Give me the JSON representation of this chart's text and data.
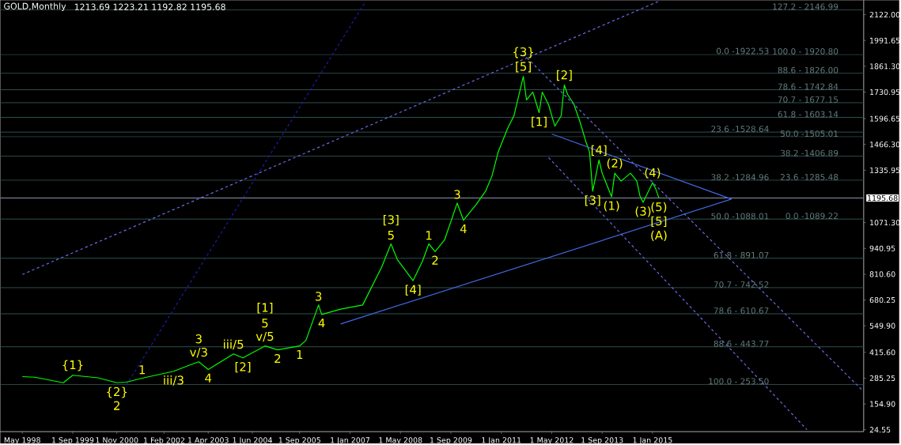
{
  "chart_data": {
    "type": "line",
    "title": "GOLD,Monthly",
    "subtitle": "1213.69 1223.21 1192.82 1195.68",
    "xlim": [
      "1997-10",
      "2020-08"
    ],
    "ylim": [
      15,
      2195
    ],
    "xticks": [
      {
        "value": "1998-05-01",
        "label": "May 1998"
      },
      {
        "value": "1999-09-01",
        "label": "1 Sep 1999"
      },
      {
        "value": "2000-11-01",
        "label": "1 Nov 2000"
      },
      {
        "value": "2002-02-01",
        "label": "1 Feb 2002"
      },
      {
        "value": "2003-04-01",
        "label": "1 Apr 2003"
      },
      {
        "value": "2004-06-01",
        "label": "1 Jun 2004"
      },
      {
        "value": "2005-09-01",
        "label": "1 Sep 2005"
      },
      {
        "value": "2007-01-01",
        "label": "1 Jan 2007"
      },
      {
        "value": "2008-05-01",
        "label": "1 May 2008"
      },
      {
        "value": "2009-09-01",
        "label": "1 Sep 2009"
      },
      {
        "value": "2011-01-01",
        "label": "1 Jan 2011"
      },
      {
        "value": "2012-05-01",
        "label": "1 May 2012"
      },
      {
        "value": "2013-09-01",
        "label": "1 Sep 2013"
      },
      {
        "value": "2015-01-01",
        "label": "1 Jan 2015"
      }
    ],
    "yticks": [
      {
        "value": 24.55,
        "label": "24.55"
      },
      {
        "value": 154.9,
        "label": "154.90"
      },
      {
        "value": 285.25,
        "label": "285.25"
      },
      {
        "value": 415.6,
        "label": "415.60"
      },
      {
        "value": 549.9,
        "label": "549.90"
      },
      {
        "value": 680.25,
        "label": "680.25"
      },
      {
        "value": 810.6,
        "label": "810.60"
      },
      {
        "value": 940.95,
        "label": "940.95"
      },
      {
        "value": 1071.3,
        "label": "1071.30"
      },
      {
        "value": 1335.95,
        "label": "1335.95"
      },
      {
        "value": 1466.3,
        "label": "1466.30"
      },
      {
        "value": 1596.65,
        "label": "1596.65"
      },
      {
        "value": 1730.95,
        "label": "1730.95"
      },
      {
        "value": 1861.3,
        "label": "1861.30"
      },
      {
        "value": 1991.65,
        "label": "1991.65"
      },
      {
        "value": 2122,
        "label": "2122.00"
      }
    ],
    "series": [
      {
        "color": "#00ff00",
        "line_style": "solid",
        "x": [
          "1998-05",
          "1998-09",
          "1999-06",
          "1999-09",
          "2000-05",
          "2000-11",
          "2001-02",
          "2001-07",
          "2002-05",
          "2002-11",
          "2003-01",
          "2003-04",
          "2003-12",
          "2004-03",
          "2004-10",
          "2005-02",
          "2005-09",
          "2005-11",
          "2006-03",
          "2006-04",
          "2006-10",
          "2007-05",
          "2007-11",
          "2008-02",
          "2008-04",
          "2008-09",
          "2008-12",
          "2009-02",
          "2009-04",
          "2009-07",
          "2009-11",
          "2010-01",
          "2010-05",
          "2010-08",
          "2010-10",
          "2010-12",
          "2011-03",
          "2011-05",
          "2011-08",
          "2011-09",
          "2011-11",
          "2012-01",
          "2012-02",
          "2012-04",
          "2012-06",
          "2012-08",
          "2012-09",
          "2012-10",
          "2012-12",
          "2013-02",
          "2013-04",
          "2013-05",
          "2013-06",
          "2013-08",
          "2013-09",
          "2013-11",
          "2013-12",
          "2014-01",
          "2014-03",
          "2014-06",
          "2014-08",
          "2014-09",
          "2014-10",
          "2015-01",
          "2015-02",
          "2015-03"
        ],
        "values": [
          293,
          290,
          262,
          300,
          287,
          262,
          265,
          285,
          320,
          357,
          368,
          329,
          408,
          388,
          448,
          428,
          448,
          476,
          655,
          607,
          634,
          655,
          845,
          964,
          885,
          778,
          877,
          964,
          925,
          984,
          1170,
          1083,
          1162,
          1230,
          1305,
          1428,
          1547,
          1611,
          1810,
          1691,
          1731,
          1627,
          1731,
          1667,
          1559,
          1611,
          1767,
          1720,
          1671,
          1579,
          1472,
          1428,
          1230,
          1388,
          1321,
          1242,
          1202,
          1321,
          1281,
          1321,
          1281,
          1206,
          1174,
          1273,
          1242,
          1196
        ]
      },
      {
        "color": "#4169e1",
        "line_style": "solid",
        "x": [
          "2006-10",
          "2017-02"
        ],
        "values": [
          559,
          1190
        ]
      },
      {
        "color": "#4169e1",
        "line_style": "solid",
        "x": [
          "2012-05",
          "2017-02"
        ],
        "values": [
          1519,
          1190
        ]
      },
      {
        "color": "#6a6ae6",
        "line_style": "dashed",
        "x": [
          "1998-05",
          "2015-03"
        ],
        "values": [
          809,
          2190
        ]
      },
      {
        "color": "#1c1ca8",
        "line_style": "dashed",
        "x": [
          "2001-02",
          "2007-06"
        ],
        "values": [
          250,
          2190
        ]
      },
      {
        "color": "#6a6ae6",
        "line_style": "dashed",
        "x": [
          "2011-08",
          "2020-08"
        ],
        "values": [
          1922,
          217
        ]
      },
      {
        "color": "#6a6ae6",
        "line_style": "dashed",
        "x": [
          "2012-04",
          "2019-02"
        ],
        "values": [
          1400,
          25
        ]
      }
    ],
    "ref_lines": [
      {
        "axis": "y",
        "value": 2146.99,
        "color": "#2f4f4f"
      },
      {
        "axis": "y",
        "value": 1920.8,
        "color": "#2f4f4f"
      },
      {
        "axis": "y",
        "value": 1826,
        "color": "#2f4f4f"
      },
      {
        "axis": "y",
        "value": 1742.84,
        "color": "#2f4f4f"
      },
      {
        "axis": "y",
        "value": 1677.15,
        "color": "#2f4f4f"
      },
      {
        "axis": "y",
        "value": 1603.14,
        "color": "#2f4f4f"
      },
      {
        "axis": "y",
        "value": 1505.01,
        "color": "#2f4f4f"
      },
      {
        "axis": "y",
        "value": 1406.89,
        "color": "#2f4f4f"
      },
      {
        "axis": "y",
        "value": 1285.48,
        "color": "#2f4f4f"
      },
      {
        "axis": "y",
        "value": 1089.22,
        "color": "#2f4f4f"
      },
      {
        "axis": "y",
        "value": 1528.64,
        "color": "#2f4f4f"
      },
      {
        "axis": "y",
        "value": 891.07,
        "color": "#2f4f4f"
      },
      {
        "axis": "y",
        "value": 742.52,
        "color": "#2f4f4f"
      },
      {
        "axis": "y",
        "value": 610.67,
        "color": "#2f4f4f"
      },
      {
        "axis": "y",
        "value": 443.77,
        "color": "#2f4f4f"
      },
      {
        "axis": "y",
        "value": 253.5,
        "color": "#2f4f4f"
      },
      {
        "axis": "y",
        "value": 1195.68,
        "label": "1195.68",
        "color": "#8c96a8"
      }
    ],
    "annotations": [
      {
        "text": "127.2 - 2146.99",
        "x": "2019-12",
        "y": 2146.99
      },
      {
        "text": "100.0 - 1920.80",
        "x": "2019-12",
        "y": 1920.8
      },
      {
        "text": "88.6 - 1826.00",
        "x": "2019-12",
        "y": 1826
      },
      {
        "text": "78.6 - 1742.84",
        "x": "2019-12",
        "y": 1742.84
      },
      {
        "text": "70.7 - 1677.15",
        "x": "2019-12",
        "y": 1677.15
      },
      {
        "text": "61.8 - 1603.14",
        "x": "2019-12",
        "y": 1603.14
      },
      {
        "text": "50.0 -1505.01",
        "x": "2019-12",
        "y": 1505.01
      },
      {
        "text": "38.2 -1406.89",
        "x": "2019-12",
        "y": 1406.89
      },
      {
        "text": "23.6 -1285.48",
        "x": "2019-12",
        "y": 1285.48
      },
      {
        "text": "0.0 -1089.22",
        "x": "2019-12",
        "y": 1089.22
      },
      {
        "text": "0.0 -1922.53",
        "x": "2018-02",
        "y": 1922.53
      },
      {
        "text": "23.6 -1528.64",
        "x": "2018-02",
        "y": 1528.64
      },
      {
        "text": "38.2 -1284.96",
        "x": "2018-02",
        "y": 1284.96
      },
      {
        "text": "50.0 -1088.01",
        "x": "2018-02",
        "y": 1088.01
      },
      {
        "text": "61.8 - 891.07",
        "x": "2018-02",
        "y": 891.07
      },
      {
        "text": "70.7 - 742.52",
        "x": "2018-02",
        "y": 742.52
      },
      {
        "text": "78.6 - 610.67",
        "x": "2018-02",
        "y": 610.67
      },
      {
        "text": "88.6 - 443.77",
        "x": "2018-02",
        "y": 443.77
      },
      {
        "text": "100.0 - 253.50",
        "x": "2018-02",
        "y": 253.5
      },
      {
        "text": "{1}",
        "x": "1999-09",
        "y": 300
      },
      {
        "text": "{2}",
        "x": "2000-11",
        "y": 262
      },
      {
        "text": "2",
        "x": "2000-11",
        "y": 262
      },
      {
        "text": "1",
        "x": "2001-07",
        "y": 285
      },
      {
        "text": "iii/3",
        "x": "2002-05",
        "y": 320
      },
      {
        "text": "v/3",
        "x": "2003-01",
        "y": 368
      },
      {
        "text": "3",
        "x": "2003-01",
        "y": 368
      },
      {
        "text": "4",
        "x": "2003-04",
        "y": 329
      },
      {
        "text": "iii/5",
        "x": "2003-12",
        "y": 408
      },
      {
        "text": "[2]",
        "x": "2004-03",
        "y": 388
      },
      {
        "text": "v/5",
        "x": "2004-10",
        "y": 448
      },
      {
        "text": "5",
        "x": "2004-10",
        "y": 448
      },
      {
        "text": "[1]",
        "x": "2004-10",
        "y": 448
      },
      {
        "text": "1",
        "x": "2005-09",
        "y": 448
      },
      {
        "text": "2",
        "x": "2005-02",
        "y": 428
      },
      {
        "text": "3",
        "x": "2006-03",
        "y": 655
      },
      {
        "text": "4",
        "x": "2006-04",
        "y": 607
      },
      {
        "text": "5",
        "x": "2008-02",
        "y": 964
      },
      {
        "text": "[3]",
        "x": "2008-02",
        "y": 964
      },
      {
        "text": "[4]",
        "x": "2008-09",
        "y": 778
      },
      {
        "text": "1",
        "x": "2009-02",
        "y": 964
      },
      {
        "text": "2",
        "x": "2009-04",
        "y": 925
      },
      {
        "text": "3",
        "x": "2009-11",
        "y": 1170
      },
      {
        "text": "4",
        "x": "2010-01",
        "y": 1083
      },
      {
        "text": "[5]",
        "x": "2011-08",
        "y": 1810
      },
      {
        "text": "{3}",
        "x": "2011-08",
        "y": 1810
      },
      {
        "text": "[1]",
        "x": "2012-01",
        "y": 1627
      },
      {
        "text": "[2]",
        "x": "2012-09",
        "y": 1767
      },
      {
        "text": "[3]",
        "x": "2013-06",
        "y": 1230
      },
      {
        "text": "[4]",
        "x": "2013-08",
        "y": 1388
      },
      {
        "text": "(1)",
        "x": "2013-12",
        "y": 1202
      },
      {
        "text": "(2)",
        "x": "2014-01",
        "y": 1321
      },
      {
        "text": "(3)",
        "x": "2014-10",
        "y": 1174
      },
      {
        "text": "(4)",
        "x": "2015-01",
        "y": 1273
      },
      {
        "text": "(5)",
        "x": "2015-03",
        "y": 1196
      },
      {
        "text": "[5]",
        "x": "2015-03",
        "y": 1196
      },
      {
        "text": "(A)",
        "x": "2015-03",
        "y": 1196
      }
    ]
  }
}
